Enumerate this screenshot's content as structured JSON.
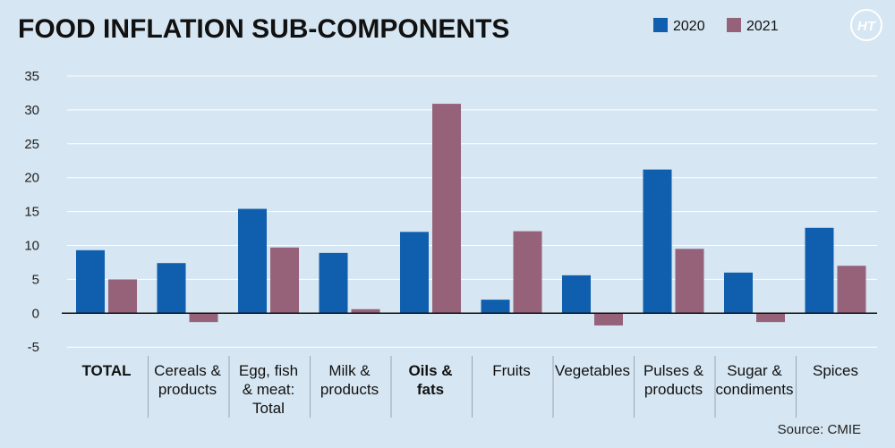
{
  "chart_data": {
    "type": "bar",
    "title": "FOOD INFLATION SUB-COMPONENTS",
    "source": "Source: CMIE",
    "logo_text": "HT",
    "categories": [
      {
        "lines": [
          "TOTAL"
        ],
        "bold": true
      },
      {
        "lines": [
          "Cereals &",
          "products"
        ],
        "bold": false
      },
      {
        "lines": [
          "Egg, fish",
          "& meat:",
          "Total"
        ],
        "bold": false
      },
      {
        "lines": [
          "Milk &",
          "products"
        ],
        "bold": false
      },
      {
        "lines": [
          "Oils &",
          "fats"
        ],
        "bold": true
      },
      {
        "lines": [
          "Fruits"
        ],
        "bold": false
      },
      {
        "lines": [
          "Vegetables"
        ],
        "bold": false
      },
      {
        "lines": [
          "Pulses &",
          "products"
        ],
        "bold": false
      },
      {
        "lines": [
          "Sugar &",
          "condiments"
        ],
        "bold": false
      },
      {
        "lines": [
          "Spices"
        ],
        "bold": false
      }
    ],
    "series": [
      {
        "name": "2020",
        "color": "#0f5fae",
        "values": [
          9.3,
          7.4,
          15.4,
          8.9,
          12.0,
          2.0,
          5.6,
          21.2,
          6.0,
          12.6
        ]
      },
      {
        "name": "2021",
        "color": "#95627a",
        "values": [
          5.0,
          -1.3,
          9.7,
          0.6,
          30.9,
          12.1,
          -1.8,
          9.5,
          -1.3,
          7.0
        ]
      }
    ],
    "yticks": [
      35,
      30,
      25,
      20,
      15,
      10,
      5,
      0,
      -5
    ],
    "ylim": [
      -5,
      35
    ],
    "grid": true,
    "legend_position": "top-right"
  },
  "colors": {
    "background": "#d6e6f2",
    "grid": "#ffffff",
    "axis": "#111111",
    "divider": "#9aa7b2",
    "logo": "#ffffff"
  }
}
